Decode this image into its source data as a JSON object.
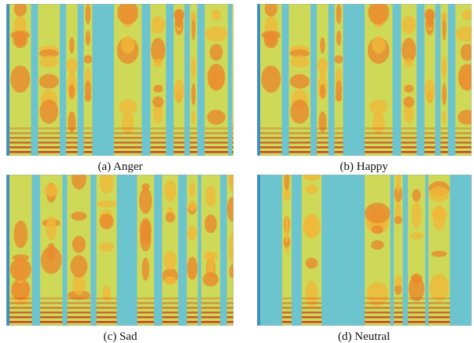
{
  "figure": {
    "panels": [
      {
        "caption": "(a) Anger"
      },
      {
        "caption": "(b) Happy"
      },
      {
        "caption": "(c) Sad"
      },
      {
        "caption": "(d) Neutral"
      }
    ]
  }
}
